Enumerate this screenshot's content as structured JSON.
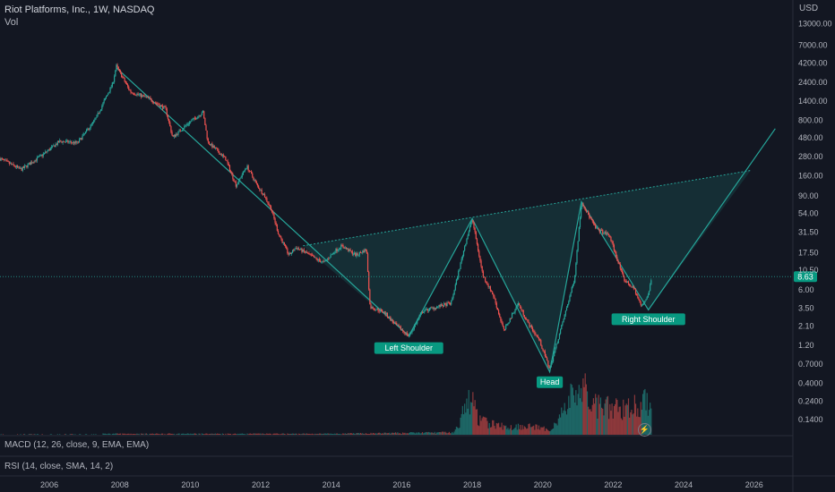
{
  "header": {
    "symbol_title": "Riot Platforms, Inc., 1W, NASDAQ",
    "volume_label": "Vol",
    "currency": "USD"
  },
  "indicators": {
    "macd_label": "MACD (12, 26, close, 9, EMA, EMA)",
    "rsi_label": "RSI (14, close, SMA, 14, 2)"
  },
  "price_axis": {
    "tick_labels": [
      "13000.00",
      "7000.00",
      "4200.00",
      "2400.00",
      "1400.00",
      "800.00",
      "480.00",
      "280.00",
      "160.00",
      "90.00",
      "54.00",
      "31.50",
      "17.50",
      "10.50",
      "6.00",
      "3.50",
      "2.10",
      "1.20",
      "0.7000",
      "0.4000",
      "0.2400",
      "0.1400"
    ],
    "last_price": "8.63"
  },
  "time_axis": {
    "tick_labels": [
      "2006",
      "2008",
      "2010",
      "2012",
      "2014",
      "2016",
      "2018",
      "2020",
      "2022",
      "2024",
      "2026"
    ]
  },
  "annotations": {
    "left_shoulder": "Left Shoulder",
    "head": "Head",
    "right_shoulder": "Right Shoulder"
  },
  "colors": {
    "background": "#131722",
    "up_candle": "#26a69a",
    "down_candle": "#ef5350",
    "pattern_line": "#26a69a",
    "pattern_fill": "#26a69a",
    "label_bg": "#089981",
    "text": "#b2b5be",
    "pane_divider": "#2a2e39"
  },
  "chart_data": {
    "type": "candlestick",
    "title": "Riot Platforms, Inc., 1W, NASDAQ",
    "y_scale": "log",
    "ylim": [
      0.11,
      16000
    ],
    "xlim": [
      2004.6,
      2027.1
    ],
    "last_price": 8.63,
    "price_path": [
      {
        "x": 2004.6,
        "y": 260
      },
      {
        "x": 2005.2,
        "y": 190
      },
      {
        "x": 2005.8,
        "y": 290
      },
      {
        "x": 2006.3,
        "y": 430
      },
      {
        "x": 2006.8,
        "y": 410
      },
      {
        "x": 2007.3,
        "y": 800
      },
      {
        "x": 2007.8,
        "y": 2300
      },
      {
        "x": 2007.9,
        "y": 3800
      },
      {
        "x": 2008.3,
        "y": 1800
      },
      {
        "x": 2008.8,
        "y": 1500
      },
      {
        "x": 2009.3,
        "y": 1100
      },
      {
        "x": 2009.5,
        "y": 480
      },
      {
        "x": 2009.9,
        "y": 700
      },
      {
        "x": 2010.3,
        "y": 950
      },
      {
        "x": 2010.35,
        "y": 1050
      },
      {
        "x": 2010.5,
        "y": 420
      },
      {
        "x": 2011.0,
        "y": 260
      },
      {
        "x": 2011.3,
        "y": 120
      },
      {
        "x": 2011.6,
        "y": 210
      },
      {
        "x": 2011.9,
        "y": 120
      },
      {
        "x": 2012.1,
        "y": 90
      },
      {
        "x": 2012.3,
        "y": 60
      },
      {
        "x": 2012.5,
        "y": 30
      },
      {
        "x": 2012.8,
        "y": 16
      },
      {
        "x": 2013.0,
        "y": 20
      },
      {
        "x": 2013.3,
        "y": 17
      },
      {
        "x": 2013.6,
        "y": 14
      },
      {
        "x": 2013.8,
        "y": 13
      },
      {
        "x": 2014.1,
        "y": 18
      },
      {
        "x": 2014.3,
        "y": 21
      },
      {
        "x": 2014.7,
        "y": 16
      },
      {
        "x": 2015.0,
        "y": 19
      },
      {
        "x": 2015.1,
        "y": 3.6
      },
      {
        "x": 2015.5,
        "y": 3.1
      },
      {
        "x": 2015.8,
        "y": 2.2
      },
      {
        "x": 2016.2,
        "y": 1.55
      },
      {
        "x": 2016.6,
        "y": 3.2
      },
      {
        "x": 2017.0,
        "y": 3.6
      },
      {
        "x": 2017.4,
        "y": 4.0
      },
      {
        "x": 2017.8,
        "y": 22
      },
      {
        "x": 2018.0,
        "y": 46
      },
      {
        "x": 2018.3,
        "y": 9
      },
      {
        "x": 2018.6,
        "y": 5
      },
      {
        "x": 2018.9,
        "y": 1.8
      },
      {
        "x": 2019.3,
        "y": 4.0
      },
      {
        "x": 2019.6,
        "y": 2.2
      },
      {
        "x": 2019.9,
        "y": 1.4
      },
      {
        "x": 2020.2,
        "y": 0.6
      },
      {
        "x": 2020.6,
        "y": 2.6
      },
      {
        "x": 2020.9,
        "y": 8
      },
      {
        "x": 2021.1,
        "y": 75
      },
      {
        "x": 2021.5,
        "y": 35
      },
      {
        "x": 2021.9,
        "y": 28
      },
      {
        "x": 2022.3,
        "y": 8
      },
      {
        "x": 2022.6,
        "y": 6
      },
      {
        "x": 2022.8,
        "y": 3.6
      },
      {
        "x": 2023.0,
        "y": 5.2
      },
      {
        "x": 2023.1,
        "y": 8.63
      }
    ],
    "volume_profile": [
      {
        "x": 2007.5,
        "v": 0.02
      },
      {
        "x": 2010.0,
        "v": 0.02
      },
      {
        "x": 2014.0,
        "v": 0.02
      },
      {
        "x": 2017.5,
        "v": 0.05
      },
      {
        "x": 2017.95,
        "v": 0.8
      },
      {
        "x": 2018.2,
        "v": 0.3
      },
      {
        "x": 2019.0,
        "v": 0.15
      },
      {
        "x": 2019.5,
        "v": 0.2
      },
      {
        "x": 2020.2,
        "v": 0.1
      },
      {
        "x": 2020.6,
        "v": 0.5
      },
      {
        "x": 2020.9,
        "v": 0.9
      },
      {
        "x": 2021.1,
        "v": 1.0
      },
      {
        "x": 2021.5,
        "v": 0.6
      },
      {
        "x": 2022.0,
        "v": 0.55
      },
      {
        "x": 2022.5,
        "v": 0.6
      },
      {
        "x": 2023.1,
        "v": 0.7
      }
    ],
    "pattern": {
      "type": "head_and_shoulders_inverse",
      "points": [
        {
          "x": 2007.9,
          "y": 3600
        },
        {
          "x": 2016.2,
          "y": 1.55
        },
        {
          "x": 2018.0,
          "y": 46
        },
        {
          "x": 2020.2,
          "y": 0.55
        },
        {
          "x": 2021.1,
          "y": 75
        },
        {
          "x": 2023.0,
          "y": 3.3
        },
        {
          "x": 2026.6,
          "y": 620
        }
      ],
      "neckline_start": {
        "x": 2013.2,
        "y": 21
      },
      "neckline_end": {
        "x": 2025.9,
        "y": 185
      },
      "labels": [
        "Left Shoulder",
        "Head",
        "Right Shoulder"
      ]
    }
  }
}
